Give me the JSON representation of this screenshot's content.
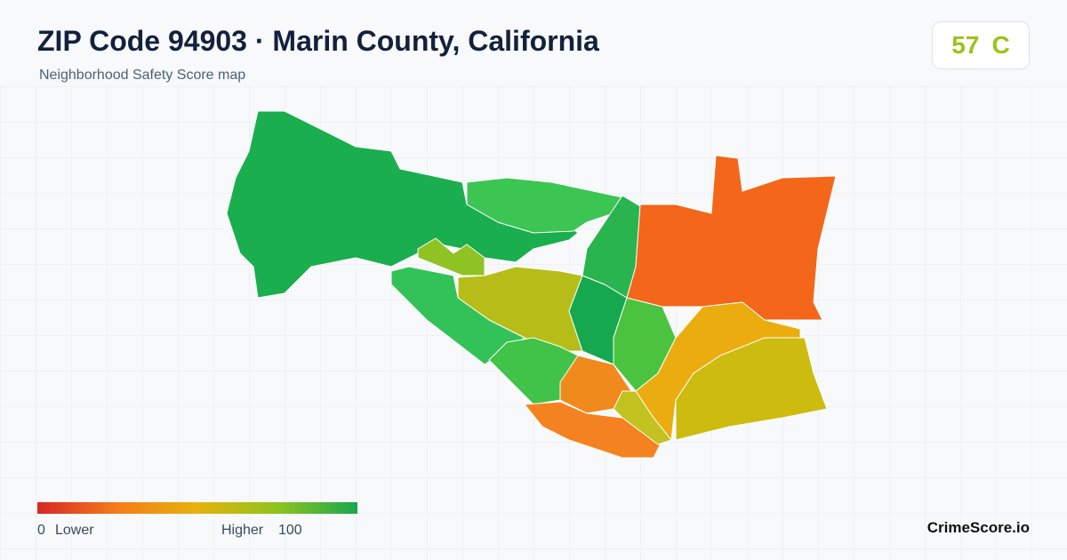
{
  "header": {
    "title": "ZIP Code 94903 · Marin County, California",
    "subtitle": "Neighborhood Safety Score map"
  },
  "badge": {
    "score": "57",
    "grade": "C"
  },
  "legend": {
    "min": "0",
    "min_label": "Lower",
    "max_label": "Higher",
    "max": "100"
  },
  "footer": {
    "brand": "CrimeScore.io"
  }
}
